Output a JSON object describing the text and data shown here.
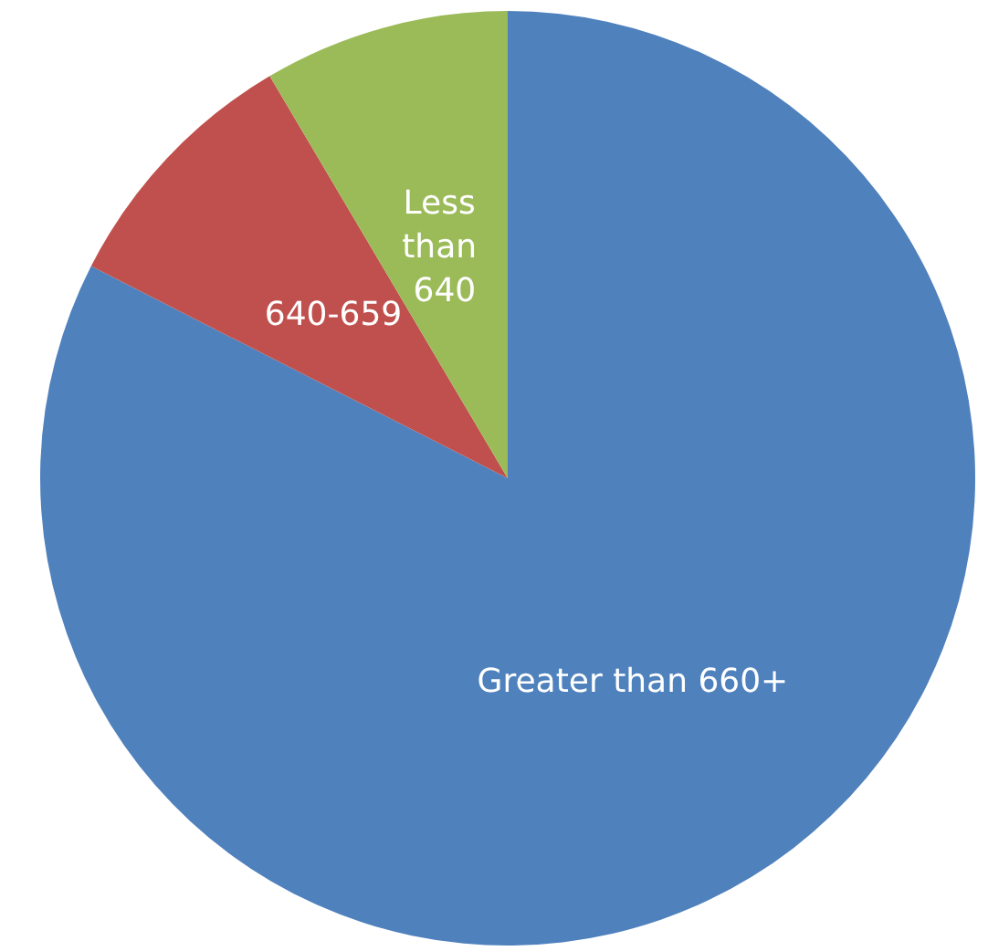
{
  "chart_data": {
    "type": "pie",
    "categories": [
      "Greater than 660+",
      "640-659",
      "Less than 640"
    ],
    "values": [
      82.5,
      9,
      8.5
    ],
    "colors": [
      "#4f81bd",
      "#c0504d",
      "#9bbb59"
    ],
    "legend": false
  }
}
